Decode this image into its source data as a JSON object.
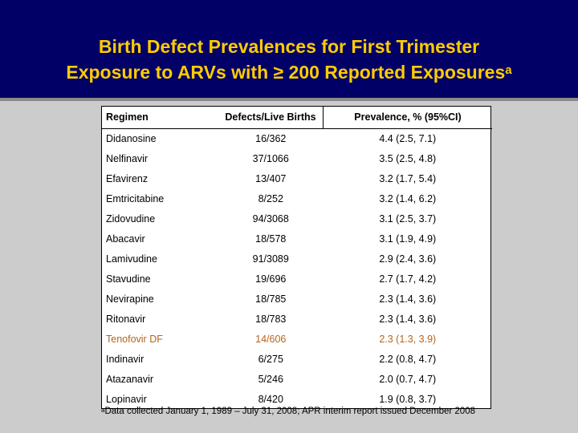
{
  "title": {
    "line1": "Birth Defect Prevalences for First Trimester",
    "line2": "Exposure to ARVs with ≥ 200 Reported Exposures",
    "superscript": "a"
  },
  "table": {
    "headers": [
      "Regimen",
      "Defects/Live Births",
      "Prevalence, % (95%CI)"
    ],
    "rows": [
      {
        "regimen": "Didanosine",
        "defects": "16/362",
        "prevalence": "4.4 (2.5, 7.1)"
      },
      {
        "regimen": "Nelfinavir",
        "defects": "37/1066",
        "prevalence": "3.5 (2.5, 4.8)"
      },
      {
        "regimen": "Efavirenz",
        "defects": "13/407",
        "prevalence": "3.2 (1.7, 5.4)"
      },
      {
        "regimen": "Emtricitabine",
        "defects": "8/252",
        "prevalence": "3.2 (1.4, 6.2)"
      },
      {
        "regimen": "Zidovudine",
        "defects": "94/3068",
        "prevalence": "3.1 (2.5, 3.7)"
      },
      {
        "regimen": "Abacavir",
        "defects": "18/578",
        "prevalence": "3.1 (1.9, 4.9)"
      },
      {
        "regimen": "Lamivudine",
        "defects": "91/3089",
        "prevalence": "2.9 (2.4, 3.6)"
      },
      {
        "regimen": "Stavudine",
        "defects": "19/696",
        "prevalence": "2.7 (1.7, 4.2)"
      },
      {
        "regimen": "Nevirapine",
        "defects": "18/785",
        "prevalence": "2.3 (1.4, 3.6)"
      },
      {
        "regimen": "Ritonavir",
        "defects": "18/783",
        "prevalence": "2.3 (1.4, 3.6)"
      },
      {
        "regimen": "Tenofovir DF",
        "defects": "14/606",
        "prevalence": "2.3 (1.3, 3.9)",
        "highlight": true
      },
      {
        "regimen": "Indinavir",
        "defects": "6/275",
        "prevalence": "2.2 (0.8, 4.7)"
      },
      {
        "regimen": "Atazanavir",
        "defects": "5/246",
        "prevalence": "2.0 (0.7, 4.7)"
      },
      {
        "regimen": "Lopinavir",
        "defects": "8/420",
        "prevalence": "1.9 (0.8, 3.7)"
      }
    ]
  },
  "footnote": {
    "marker": "a",
    "text": "Data collected January 1, 1989 – July 31, 2008; APR interim report issued December 2008"
  },
  "colors": {
    "background": "#000066",
    "title": "#ffcc00",
    "highlight_row": "#b4651d"
  }
}
